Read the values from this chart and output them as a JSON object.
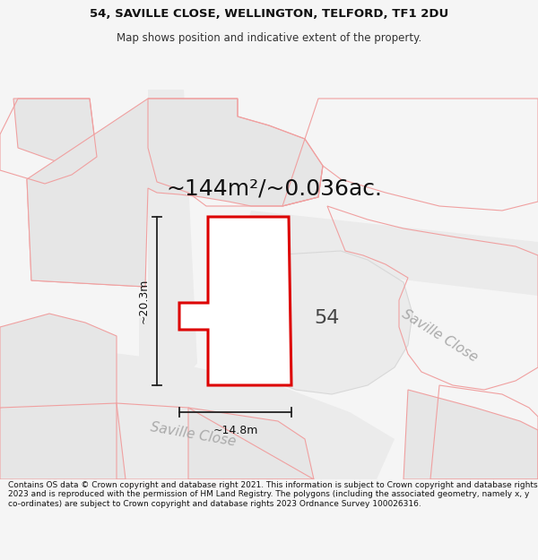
{
  "title_line1": "54, SAVILLE CLOSE, WELLINGTON, TELFORD, TF1 2DU",
  "title_line2": "Map shows position and indicative extent of the property.",
  "area_label": "~144m²/~0.036ac.",
  "dimension_width": "~14.8m",
  "dimension_height": "~20.3m",
  "number_label": "54",
  "road_label1": "Saville Close",
  "road_label2": "Saville Close",
  "footer_text": "Contains OS data © Crown copyright and database right 2021. This information is subject to Crown copyright and database rights 2023 and is reproduced with the permission of HM Land Registry. The polygons (including the associated geometry, namely x, y co-ordinates) are subject to Crown copyright and database rights 2023 Ordnance Survey 100026316.",
  "bg_color": "#f5f5f5",
  "map_bg": "#ffffff",
  "plot_fill": "#ffffff",
  "plot_stroke": "#dd0000",
  "neighbor_fill": "#e6e6e6",
  "neighbor_stroke": "#f0a0a0",
  "road_fill_light": "#ebebeb",
  "road_stroke_light": "#d8d8d8",
  "dim_color": "#222222",
  "label_color": "#111111",
  "road_text_color": "#aaaaaa",
  "title_fontsize": 9.5,
  "subtitle_fontsize": 8.5,
  "area_fontsize": 18,
  "dim_fontsize": 9,
  "number_fontsize": 16,
  "road_fontsize": 11,
  "footer_fontsize": 6.5
}
